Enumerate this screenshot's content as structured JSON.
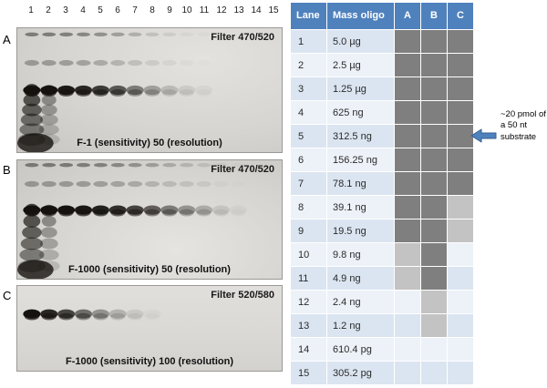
{
  "figure": {
    "lane_numbers": [
      "1",
      "2",
      "3",
      "4",
      "5",
      "6",
      "7",
      "8",
      "9",
      "10",
      "11",
      "12",
      "13",
      "14",
      "15"
    ],
    "panels": [
      {
        "label": "A",
        "filter_label": "Filter 470/520",
        "settings_label": "F-1 (sensitivity) 50 (resolution)",
        "band_opacities": [
          1,
          1,
          0.97,
          0.9,
          0.8,
          0.66,
          0.48,
          0.3,
          0.17,
          0.09,
          0.04,
          0,
          0,
          0,
          0
        ],
        "band_y": 0.5,
        "upper_band_y": 0.28,
        "well_y": 0.05,
        "smear": true
      },
      {
        "label": "B",
        "filter_label": "Filter 470/520",
        "settings_label": "F-1000 (sensitivity) 50 (resolution)",
        "band_opacities": [
          1,
          1,
          1,
          0.98,
          0.93,
          0.86,
          0.76,
          0.62,
          0.48,
          0.36,
          0.24,
          0.1,
          0.04,
          0,
          0
        ],
        "band_y": 0.42,
        "upper_band_y": 0.2,
        "well_y": 0.04,
        "smear": true
      },
      {
        "label": "C",
        "filter_label": "Filter 520/580",
        "settings_label": "F-1000 (sensitivity) 100 (resolution)",
        "band_opacities": [
          1,
          0.9,
          0.75,
          0.55,
          0.36,
          0.2,
          0.09,
          0.03,
          0,
          0,
          0,
          0,
          0,
          0,
          0
        ],
        "band_y": 0.33,
        "upper_band_y": null,
        "well_y": null,
        "smear": false
      }
    ]
  },
  "table": {
    "headers": [
      "Lane",
      "Mass oligo",
      "A",
      "B",
      "C"
    ],
    "rows": [
      {
        "lane": "1",
        "mass": "5.0 µg",
        "a": "dark",
        "b": "dark",
        "c": "dark"
      },
      {
        "lane": "2",
        "mass": "2.5 µg",
        "a": "dark",
        "b": "dark",
        "c": "dark"
      },
      {
        "lane": "3",
        "mass": "1.25 µg",
        "a": "dark",
        "b": "dark",
        "c": "dark"
      },
      {
        "lane": "4",
        "mass": "625 ng",
        "a": "dark",
        "b": "dark",
        "c": "dark"
      },
      {
        "lane": "5",
        "mass": "312.5 ng",
        "a": "dark",
        "b": "dark",
        "c": "dark"
      },
      {
        "lane": "6",
        "mass": "156.25 ng",
        "a": "dark",
        "b": "dark",
        "c": "dark"
      },
      {
        "lane": "7",
        "mass": "78.1 ng",
        "a": "dark",
        "b": "dark",
        "c": "dark"
      },
      {
        "lane": "8",
        "mass": "39.1 ng",
        "a": "dark",
        "b": "dark",
        "c": "light"
      },
      {
        "lane": "9",
        "mass": "19.5 ng",
        "a": "dark",
        "b": "dark",
        "c": "light"
      },
      {
        "lane": "10",
        "mass": "9.8 ng",
        "a": "light",
        "b": "dark",
        "c": "none"
      },
      {
        "lane": "11",
        "mass": "4.9 ng",
        "a": "light",
        "b": "dark",
        "c": "none"
      },
      {
        "lane": "12",
        "mass": "2.4 ng",
        "a": "none",
        "b": "light",
        "c": "none"
      },
      {
        "lane": "13",
        "mass": "1.2 ng",
        "a": "none",
        "b": "light",
        "c": "none"
      },
      {
        "lane": "14",
        "mass": "610.4 pg",
        "a": "none",
        "b": "none",
        "c": "none"
      },
      {
        "lane": "15",
        "mass": "305.2 pg",
        "a": "none",
        "b": "none",
        "c": "none"
      }
    ]
  },
  "annotation": {
    "text": "~20 pmol of a 50 nt substrate",
    "arrow_icon": "left-arrow",
    "points_to_lane": "5"
  },
  "colors": {
    "header_bg": "#4f81bd",
    "header_text": "#ffffff",
    "row_odd": "#dbe5f1",
    "row_even": "#edf2f9",
    "cell_dark": "#7f7f7f",
    "cell_light": "#c3c3c3",
    "arrow": "#4f81bd",
    "arrow_outline": "#365f91",
    "band_color": "#16130f"
  }
}
